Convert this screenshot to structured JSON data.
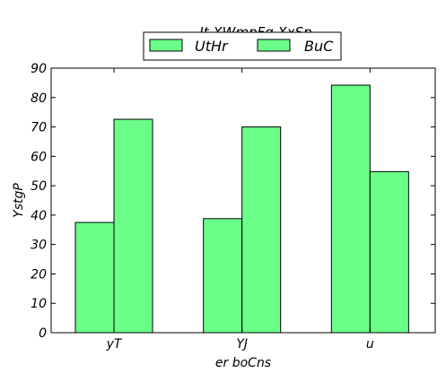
{
  "chart_data": {
    "type": "bar",
    "title": "It XWmpFg XxSp",
    "xlabel": "er  boCns",
    "ylabel": "YstgP",
    "categories": [
      "yT",
      "YJ",
      "u"
    ],
    "series": [
      {
        "name": "UtHr",
        "values": [
          37.5,
          38.8,
          84.2
        ],
        "color": "#6bff8a"
      },
      {
        "name": "BuC",
        "values": [
          72.6,
          70.0,
          54.8
        ],
        "color": "#6bff8a"
      }
    ],
    "ylim": [
      0,
      90
    ],
    "yticks": [
      0,
      10,
      20,
      30,
      40,
      50,
      60,
      70,
      80,
      90
    ],
    "grid": false,
    "legend_position": "top-center"
  }
}
